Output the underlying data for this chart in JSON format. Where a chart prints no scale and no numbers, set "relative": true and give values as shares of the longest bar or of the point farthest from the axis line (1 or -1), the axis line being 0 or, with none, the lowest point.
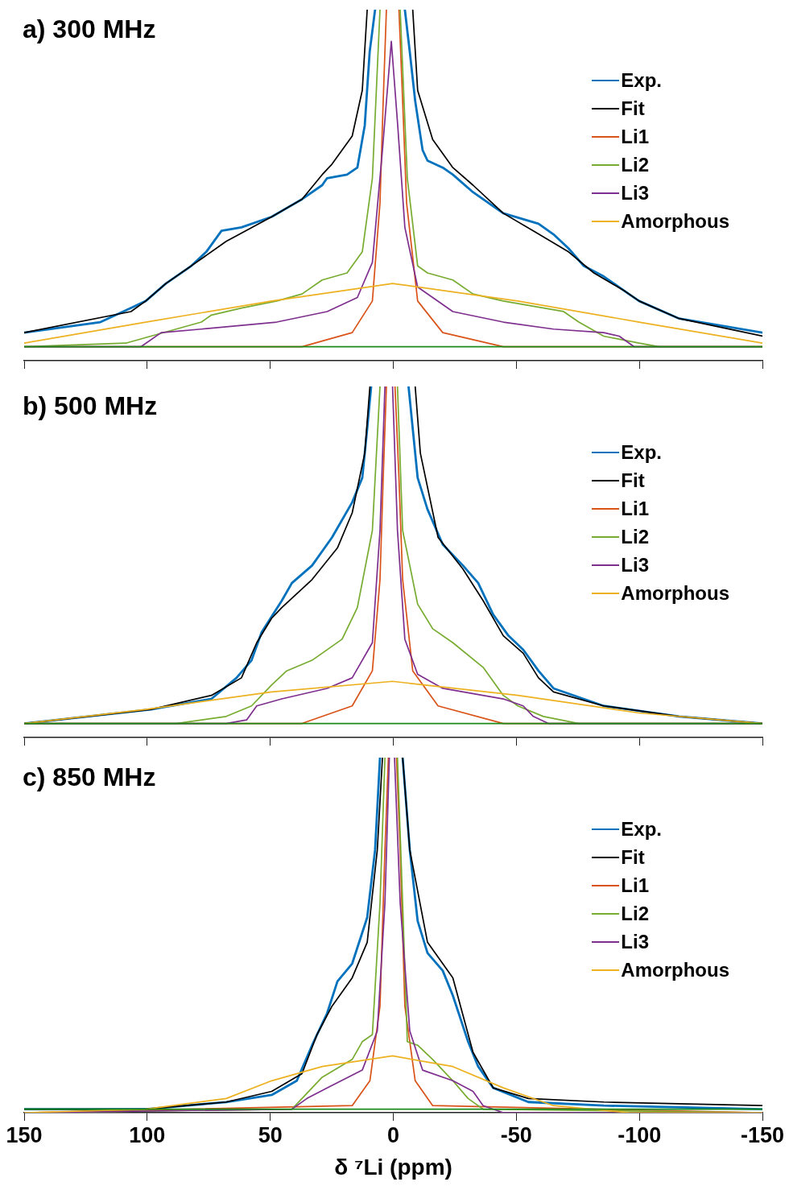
{
  "chart_data": [
    {
      "type": "line",
      "title": "a) 300 MHz",
      "relative": true,
      "legend": "top right",
      "tick_labels": false,
      "xlim": [
        150,
        -150
      ],
      "xticks": [
        150,
        100,
        50,
        0,
        -50,
        -100,
        -150
      ],
      "series": [
        {
          "name": "Exp.",
          "color": "#0072bd",
          "x": [
            150,
            119,
            106.6,
            100.6,
            92.4,
            82.1,
            76,
            69.8,
            61.7,
            49.4,
            37.1,
            28.9,
            26.9,
            18.8,
            14.6,
            11.6,
            9.6,
            7.4,
            1.4,
            -4.7,
            -6.7,
            -8.9,
            -11.9,
            -13.9,
            -20.1,
            -24.2,
            -32.4,
            -44.7,
            -59,
            -65.1,
            -71.2,
            -77.4,
            -85.5,
            -93.7,
            -99.9,
            -116.2,
            -150
          ],
          "values": [
            0.08,
            0.11,
            0.15,
            0.17,
            0.22,
            0.27,
            0.31,
            0.37,
            0.38,
            0.41,
            0.46,
            0.5,
            0.52,
            0.53,
            0.55,
            0.67,
            0.88,
            1,
            null,
            1,
            0.88,
            0.74,
            0.6,
            0.57,
            0.55,
            0.53,
            0.48,
            0.42,
            0.39,
            0.36,
            0.32,
            0.27,
            0.24,
            0.2,
            0.17,
            0.12,
            0.08
          ]
        },
        {
          "name": "Fit",
          "color": "#000000",
          "x": [
            150,
            106.6,
            100.6,
            92.4,
            78,
            67.9,
            49.4,
            37.1,
            28.9,
            24.9,
            16.7,
            12.6,
            10.6,
            1.4,
            -7.9,
            -9.9,
            -16,
            -24.2,
            -32.4,
            -44.7,
            -56.9,
            -71.2,
            -81.5,
            -93.7,
            -99.9,
            -116.2,
            -150
          ],
          "values": [
            0.08,
            0.14,
            0.17,
            0.22,
            0.29,
            0.34,
            0.41,
            0.46,
            0.53,
            0.56,
            0.64,
            0.77,
            1,
            null,
            1,
            0.77,
            0.63,
            0.55,
            0.5,
            0.42,
            0.37,
            0.31,
            0.25,
            0.2,
            0.17,
            0.12,
            0.07
          ]
        },
        {
          "name": "Li1",
          "color": "#d95319",
          "x": [
            150,
            37.1,
            16.7,
            8.5,
            5.4,
            4.1,
            2.8,
            0.3,
            -2.3,
            -3.8,
            -5.4,
            -9.9,
            -20.1,
            -44.7,
            -150
          ],
          "values": [
            0.04,
            0.04,
            0.08,
            0.17,
            0.45,
            0.74,
            1,
            null,
            1,
            0.74,
            0.45,
            0.17,
            0.08,
            0.04,
            0.04
          ]
        },
        {
          "name": "Li2",
          "color": "#77ac30",
          "x": [
            150,
            108.7,
            98.5,
            78,
            73.9,
            61.7,
            47.4,
            37.1,
            28.9,
            18.8,
            12.6,
            8.5,
            5.4,
            1.3,
            -2.8,
            -5.7,
            -9.9,
            -13.9,
            -24.2,
            -32.4,
            -44.7,
            -69.2,
            -75.4,
            -85.5,
            -99.9,
            -108.1,
            -150
          ],
          "values": [
            0.04,
            0.05,
            0.07,
            0.11,
            0.13,
            0.15,
            0.17,
            0.19,
            0.23,
            0.25,
            0.31,
            0.52,
            1,
            null,
            1,
            0.52,
            0.27,
            0.25,
            0.23,
            0.19,
            0.17,
            0.14,
            0.11,
            0.07,
            0.05,
            0.04,
            0.04
          ]
        },
        {
          "name": "Li3",
          "color": "#7e2f8e",
          "x": [
            150,
            102.5,
            94.3,
            78,
            47.4,
            26.9,
            14.6,
            8.5,
            4.4,
            0.8,
            -1.8,
            -4.7,
            -9.9,
            -24.2,
            -44.7,
            -65.1,
            -85.5,
            -91.8,
            -97.8,
            -106,
            -150
          ],
          "values": [
            0.04,
            0.04,
            0.08,
            0.09,
            0.11,
            0.14,
            0.18,
            0.28,
            0.6,
            0.91,
            0.67,
            0.38,
            0.21,
            0.14,
            0.11,
            0.09,
            0.08,
            0.07,
            0.04,
            0.04,
            0.04
          ]
        },
        {
          "name": "Amorphous",
          "color": "#edb120",
          "x": [
            150,
            100.6,
            49.4,
            0.3,
            -50.6,
            -99.9,
            -150
          ],
          "values": [
            0.05,
            0.11,
            0.17,
            0.22,
            0.17,
            0.11,
            0.05
          ]
        },
        {
          "color": "#1b8a1b",
          "x": [
            150,
            -150
          ],
          "values": [
            0.04,
            0.04
          ]
        }
      ]
    },
    {
      "type": "line",
      "title": "b) 500 MHz",
      "relative": true,
      "legend": "top right",
      "tick_labels": false,
      "xlim": [
        150,
        -150
      ],
      "xticks": [
        150,
        100,
        50,
        0,
        -50,
        -100,
        -150
      ],
      "series": [
        {
          "name": "Exp.",
          "color": "#0072bd",
          "x": [
            150,
            98.5,
            73.9,
            63.7,
            57.6,
            53.5,
            45.3,
            41.2,
            33,
            24.9,
            16.7,
            12.6,
            10.6,
            9,
            1.4,
            -6.2,
            -7.9,
            -9.9,
            -13.9,
            -20.1,
            -28.3,
            -34.5,
            -40.6,
            -46.8,
            -52.8,
            -59,
            -65.1,
            -85.5,
            -116.2,
            -150
          ],
          "values": [
            0.04,
            0.08,
            0.11,
            0.17,
            0.22,
            0.3,
            0.39,
            0.44,
            0.49,
            0.57,
            0.67,
            0.74,
            0.88,
            1,
            null,
            1,
            0.88,
            0.74,
            0.65,
            0.55,
            0.49,
            0.44,
            0.35,
            0.29,
            0.25,
            0.19,
            0.14,
            0.09,
            0.06,
            0.04
          ]
        },
        {
          "name": "Fit",
          "color": "#000000",
          "x": [
            150,
            98.5,
            73.9,
            61.7,
            55.5,
            49.4,
            45.3,
            33,
            22.7,
            16.7,
            11.6,
            9.5,
            0.3,
            -8.9,
            -11,
            -18.2,
            -28.3,
            -36.5,
            -44.7,
            -52.8,
            -59,
            -65.1,
            -85.5,
            -116.2,
            -150
          ],
          "values": [
            0.04,
            0.08,
            0.12,
            0.17,
            0.27,
            0.34,
            0.37,
            0.45,
            0.54,
            0.64,
            0.81,
            1,
            null,
            1,
            0.81,
            0.57,
            0.48,
            0.39,
            0.29,
            0.24,
            0.17,
            0.13,
            0.09,
            0.06,
            0.04
          ]
        },
        {
          "name": "Li1",
          "color": "#d95319",
          "x": [
            150,
            37.1,
            16.7,
            8.5,
            5.4,
            4.1,
            2.8,
            1,
            -0.7,
            -2.3,
            -3.8,
            -7.9,
            -18.2,
            -44.7,
            -150
          ],
          "values": [
            0.04,
            0.04,
            0.09,
            0.19,
            0.45,
            0.74,
            1,
            null,
            1,
            0.74,
            0.45,
            0.19,
            0.09,
            0.04,
            0.04
          ]
        },
        {
          "name": "Li2",
          "color": "#77ac30",
          "x": [
            150,
            88.2,
            67.9,
            57.6,
            49.4,
            43.3,
            33,
            20.8,
            14.6,
            8.5,
            5.4,
            1.8,
            -1.7,
            -3.8,
            -9.9,
            -16,
            -24.2,
            -36.5,
            -44.7,
            -50.6,
            -61,
            -75.4,
            -150
          ],
          "values": [
            0.04,
            0.04,
            0.06,
            0.09,
            0.15,
            0.19,
            0.22,
            0.28,
            0.37,
            0.59,
            1,
            null,
            1,
            0.59,
            0.38,
            0.31,
            0.27,
            0.2,
            0.12,
            0.09,
            0.06,
            0.04,
            0.04
          ]
        },
        {
          "name": "Li3",
          "color": "#7e2f8e",
          "x": [
            150,
            67.9,
            59.6,
            55.5,
            45.3,
            26.9,
            16.7,
            8.5,
            5.4,
            3.4,
            1.8,
            0.3,
            -1.7,
            -4.7,
            -9.9,
            -20.1,
            -44.7,
            -52.8,
            -56.9,
            -63,
            -150
          ],
          "values": [
            0.04,
            0.04,
            0.05,
            0.09,
            0.11,
            0.14,
            0.17,
            0.27,
            0.59,
            1,
            null,
            1,
            0.59,
            0.28,
            0.18,
            0.14,
            0.11,
            0.09,
            0.06,
            0.04,
            0.04
          ]
        },
        {
          "name": "Amorphous",
          "color": "#edb120",
          "x": [
            150,
            100.6,
            49.4,
            0.3,
            -50.6,
            -99.9,
            -150
          ],
          "values": [
            0.04,
            0.08,
            0.13,
            0.16,
            0.12,
            0.07,
            0.04
          ]
        },
        {
          "color": "#1b8a1b",
          "x": [
            150,
            -150
          ],
          "values": [
            0.04,
            0.04
          ]
        }
      ]
    },
    {
      "type": "line",
      "title": "c) 850 MHz",
      "xlabel": "δ ⁷Li (ppm)",
      "relative": true,
      "legend": "top right",
      "tick_labels": "x",
      "xlim": [
        150,
        -150
      ],
      "xticks": [
        150,
        100,
        50,
        0,
        -50,
        -100,
        -150
      ],
      "series": [
        {
          "name": "Exp.",
          "color": "#0072bd",
          "x": [
            150,
            100.6,
            67.9,
            49.4,
            39.2,
            33,
            26.9,
            22.7,
            16.7,
            10.6,
            7.4,
            5.4,
            0.8,
            -3.8,
            -6.7,
            -9.9,
            -13.9,
            -20.1,
            -24.2,
            -30.4,
            -34.5,
            -40.6,
            -54.9,
            -85.5,
            -150
          ],
          "values": [
            0.01,
            0.01,
            0.03,
            0.05,
            0.09,
            0.19,
            0.28,
            0.37,
            0.42,
            0.55,
            0.74,
            1,
            null,
            1,
            0.74,
            0.54,
            0.45,
            0.4,
            0.33,
            0.2,
            0.13,
            0.07,
            0.03,
            0.02,
            0.01
          ]
        },
        {
          "name": "Fit",
          "color": "#000000",
          "x": [
            150,
            100.6,
            67.9,
            49.4,
            37.1,
            31,
            24.9,
            16.7,
            10.6,
            6.5,
            4.4,
            0.3,
            -3.8,
            -6.7,
            -13.9,
            -24.2,
            -32.4,
            -40.6,
            -54.9,
            -85.5,
            -150
          ],
          "values": [
            0.01,
            0.01,
            0.03,
            0.06,
            0.11,
            0.22,
            0.3,
            0.38,
            0.48,
            0.74,
            1,
            null,
            1,
            0.74,
            0.48,
            0.38,
            0.17,
            0.07,
            0.04,
            0.03,
            0.02
          ]
        },
        {
          "name": "Li1",
          "color": "#d95319",
          "x": [
            150,
            16.7,
            9.5,
            5.4,
            3.4,
            2,
            0.4,
            -1.3,
            -2.8,
            -4.7,
            -8.9,
            -16,
            -150
          ],
          "values": [
            0,
            0.02,
            0.09,
            0.3,
            0.74,
            1,
            null,
            1,
            0.74,
            0.3,
            0.09,
            0.02,
            0
          ]
        },
        {
          "name": "Li2",
          "color": "#77ac30",
          "x": [
            150,
            41.2,
            37.1,
            28.9,
            16.7,
            12.6,
            8.5,
            5.4,
            3.4,
            0.9,
            -1.7,
            -3.8,
            -5.7,
            -9.9,
            -16,
            -24.2,
            -30.4,
            -36.5,
            -150
          ],
          "values": [
            0,
            0.01,
            0.04,
            0.1,
            0.15,
            0.2,
            0.22,
            0.59,
            1,
            null,
            1,
            0.59,
            0.2,
            0.19,
            0.15,
            0.09,
            0.04,
            0.01,
            0
          ]
        },
        {
          "name": "Li3",
          "color": "#7e2f8e",
          "x": [
            150,
            41.2,
            35.1,
            26.9,
            12.6,
            6.5,
            3.4,
            1.6,
            0.5,
            -0.5,
            -2.8,
            -6.7,
            -11.9,
            -24.2,
            -32.4,
            -36.5,
            -44.7,
            -150
          ],
          "values": [
            0,
            0.01,
            0.04,
            0.07,
            0.12,
            0.23,
            0.59,
            1,
            null,
            1,
            0.59,
            0.23,
            0.12,
            0.09,
            0.06,
            0.02,
            0,
            0
          ]
        },
        {
          "name": "Amorphous",
          "color": "#edb120",
          "x": [
            150,
            100.6,
            67.9,
            49.4,
            28.9,
            0.3,
            -24.2,
            -44.7,
            -65.1,
            -96,
            -150
          ],
          "values": [
            0,
            0.01,
            0.04,
            0.09,
            0.13,
            0.16,
            0.13,
            0.07,
            0.02,
            0,
            0
          ]
        },
        {
          "color": "#1b8a1b",
          "x": [
            150,
            -150
          ],
          "values": [
            0.01,
            0.01
          ]
        }
      ]
    }
  ]
}
